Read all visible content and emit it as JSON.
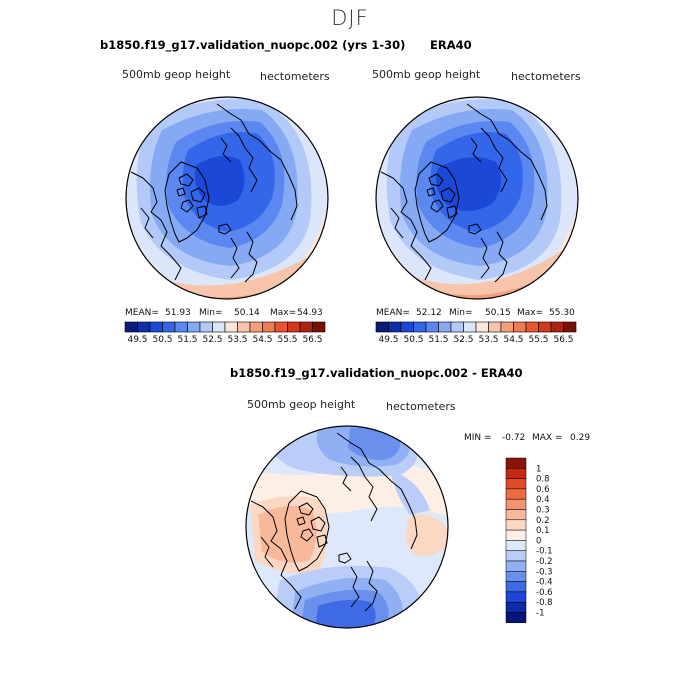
{
  "figure": {
    "season": "DJF"
  },
  "panel_model": {
    "title": "b1850.f19_g17.validation_nuopc.002 (yrs 1-30)",
    "variable": "500mb geop height",
    "units": "hectometers",
    "stats_label_mean": "MEAN=",
    "mean": "51.93",
    "stats_label_min": "Min=",
    "min": "50.14",
    "stats_label_max": "Max=",
    "max": "54.93"
  },
  "panel_obs": {
    "title": "ERA40",
    "variable": "500mb geop height",
    "units": "hectometers",
    "stats_label_mean": "MEAN=",
    "mean": "52.12",
    "stats_label_min": "Min=",
    "min": "50.15",
    "stats_label_max": "Max=",
    "max": "55.30"
  },
  "panel_diff": {
    "title": "b1850.f19_g17.validation_nuopc.002 - ERA40",
    "variable": "500mb geop height",
    "units": "hectometers",
    "min_label": "MIN =",
    "min": "-0.72",
    "max_label": "MAX =",
    "max": "0.29"
  },
  "colorbar_abs": {
    "tick_labels": [
      "49.5",
      "50.5",
      "51.5",
      "52.5",
      "53.5",
      "54.5",
      "55.5",
      "56.5"
    ],
    "colors": [
      "#081d7a",
      "#0c2fa8",
      "#1c48d8",
      "#3366e8",
      "#5a87f0",
      "#86a9f4",
      "#b3c9f8",
      "#dce6fb",
      "#fbe6d8",
      "#f8c5aa",
      "#f3a07a",
      "#ee7c52",
      "#e8552f",
      "#d4381a",
      "#ad2310",
      "#7a1005"
    ]
  },
  "colorbar_diff": {
    "tick_labels": [
      "1",
      "0.8",
      "0.6",
      "0.4",
      "0.3",
      "0.2",
      "0.1",
      "0",
      "-0.1",
      "-0.2",
      "-0.3",
      "-0.4",
      "-0.6",
      "-0.8",
      "-1"
    ],
    "colors": [
      "#8a1408",
      "#c42a12",
      "#e24a25",
      "#ee6b42",
      "#f49272",
      "#f8b89c",
      "#fbd8c4",
      "#fdefe3",
      "#dde8fb",
      "#b9cdf8",
      "#91b0f4",
      "#6a90ee",
      "#3f6ae6",
      "#2045d6",
      "#0d2aa8",
      "#051478"
    ]
  }
}
